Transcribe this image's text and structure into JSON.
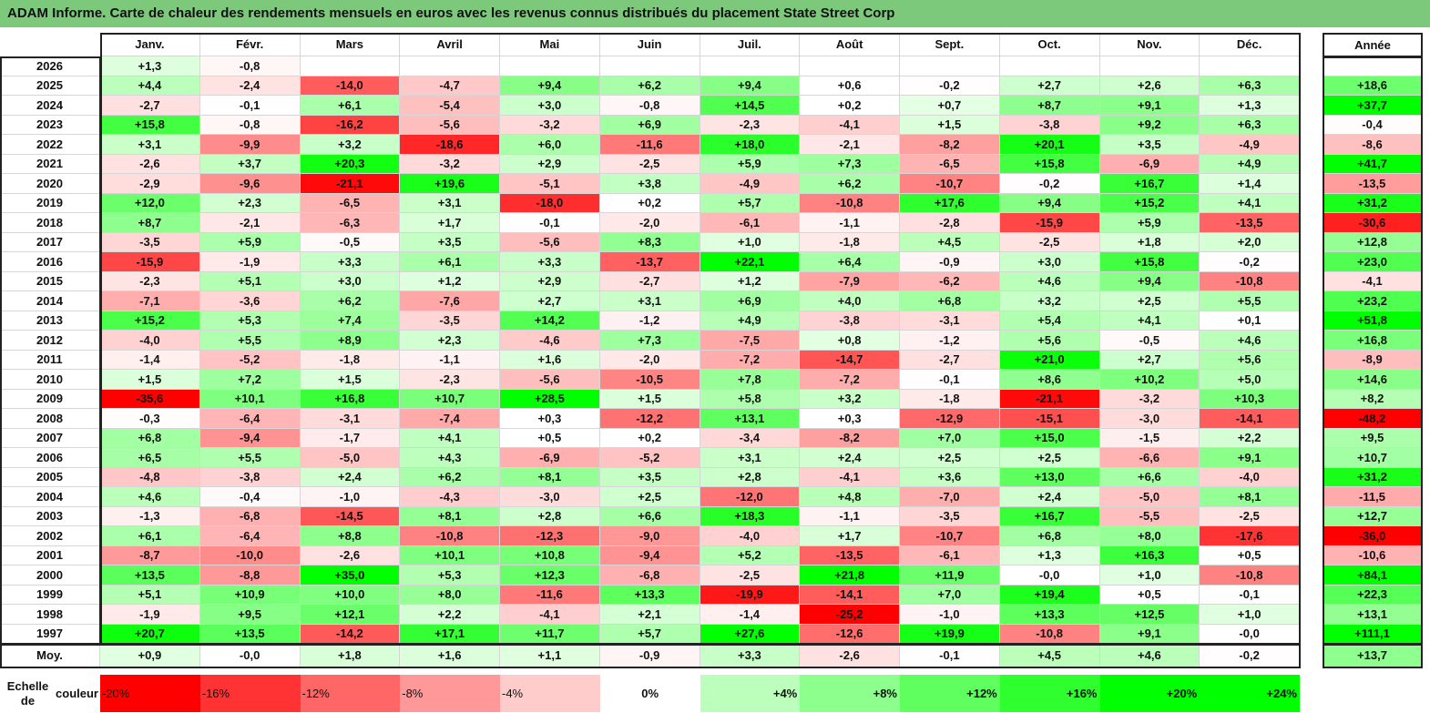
{
  "title": "ADAM Informe. Carte de chaleur des rendements mensuels en euros avec les revenus connus distribués du placement State Street Corp",
  "chart_data": {
    "type": "heatmap",
    "title": "ADAM Informe. Carte de chaleur des rendements mensuels en euros avec les revenus connus distribués du placement State Street Corp",
    "columns": [
      "Janv.",
      "Févr.",
      "Mars",
      "Avril",
      "Mai",
      "Juin",
      "Juil.",
      "Août",
      "Sept.",
      "Oct.",
      "Nov.",
      "Déc."
    ],
    "year_header": "Année",
    "average_label": "Moy.",
    "rows": [
      {
        "year": "2026",
        "values": [
          "+1,3",
          "-0,8",
          "",
          "",
          "",
          "",
          "",
          "",
          "",
          "",
          "",
          ""
        ],
        "annual": ""
      },
      {
        "year": "2025",
        "values": [
          "+4,4",
          "-2,4",
          "-14,0",
          "-4,7",
          "+9,4",
          "+6,2",
          "+9,4",
          "+0,6",
          "-0,2",
          "+2,7",
          "+2,6",
          "+6,3"
        ],
        "annual": "+18,6"
      },
      {
        "year": "2024",
        "values": [
          "-2,7",
          "-0,1",
          "+6,1",
          "-5,4",
          "+3,0",
          "-0,8",
          "+14,5",
          "+0,2",
          "+0,7",
          "+8,7",
          "+9,1",
          "+1,3"
        ],
        "annual": "+37,7"
      },
      {
        "year": "2023",
        "values": [
          "+15,8",
          "-0,8",
          "-16,2",
          "-5,6",
          "-3,2",
          "+6,9",
          "-2,3",
          "-4,1",
          "+1,5",
          "-3,8",
          "+9,2",
          "+6,3"
        ],
        "annual": "-0,4"
      },
      {
        "year": "2022",
        "values": [
          "+3,1",
          "-9,9",
          "+3,2",
          "-18,6",
          "+6,0",
          "-11,6",
          "+18,0",
          "-2,1",
          "-8,2",
          "+20,1",
          "+3,5",
          "-4,9"
        ],
        "annual": "-8,6"
      },
      {
        "year": "2021",
        "values": [
          "-2,6",
          "+3,7",
          "+20,3",
          "-3,2",
          "+2,9",
          "-2,5",
          "+5,9",
          "+7,3",
          "-6,5",
          "+15,8",
          "-6,9",
          "+4,9"
        ],
        "annual": "+41,7"
      },
      {
        "year": "2020",
        "values": [
          "-2,9",
          "-9,6",
          "-21,1",
          "+19,6",
          "-5,1",
          "+3,8",
          "-4,9",
          "+6,2",
          "-10,7",
          "-0,2",
          "+16,7",
          "+1,4"
        ],
        "annual": "-13,5"
      },
      {
        "year": "2019",
        "values": [
          "+12,0",
          "+2,3",
          "-6,5",
          "+3,1",
          "-18,0",
          "+0,2",
          "+5,7",
          "-10,8",
          "+17,6",
          "+9,4",
          "+15,2",
          "+4,1"
        ],
        "annual": "+31,2"
      },
      {
        "year": "2018",
        "values": [
          "+8,7",
          "-2,1",
          "-6,3",
          "+1,7",
          "-0,1",
          "-2,0",
          "-6,1",
          "-1,1",
          "-2,8",
          "-15,9",
          "+5,9",
          "-13,5"
        ],
        "annual": "-30,6"
      },
      {
        "year": "2017",
        "values": [
          "-3,5",
          "+5,9",
          "-0,5",
          "+3,5",
          "-5,6",
          "+8,3",
          "+1,0",
          "-1,8",
          "+4,5",
          "-2,5",
          "+1,8",
          "+2,0"
        ],
        "annual": "+12,8"
      },
      {
        "year": "2016",
        "values": [
          "-15,9",
          "-1,9",
          "+3,3",
          "+6,1",
          "+3,3",
          "-13,7",
          "+22,1",
          "+6,4",
          "-0,9",
          "+3,0",
          "+15,8",
          "-0,2"
        ],
        "annual": "+23,0"
      },
      {
        "year": "2015",
        "values": [
          "-2,3",
          "+5,1",
          "+3,0",
          "+1,2",
          "+2,9",
          "-2,7",
          "+1,2",
          "-7,9",
          "-6,2",
          "+4,6",
          "+9,4",
          "-10,8"
        ],
        "annual": "-4,1"
      },
      {
        "year": "2014",
        "values": [
          "-7,1",
          "-3,6",
          "+6,2",
          "-7,6",
          "+2,7",
          "+3,1",
          "+6,9",
          "+4,0",
          "+6,8",
          "+3,2",
          "+2,5",
          "+5,5"
        ],
        "annual": "+23,2"
      },
      {
        "year": "2013",
        "values": [
          "+15,2",
          "+5,3",
          "+7,4",
          "-3,5",
          "+14,2",
          "-1,2",
          "+4,9",
          "-3,8",
          "-3,1",
          "+5,4",
          "+4,1",
          "+0,1"
        ],
        "annual": "+51,8"
      },
      {
        "year": "2012",
        "values": [
          "-4,0",
          "+5,5",
          "+8,9",
          "+2,3",
          "-4,6",
          "+7,3",
          "-7,5",
          "+0,8",
          "-1,2",
          "+5,6",
          "-0,5",
          "+4,6"
        ],
        "annual": "+16,8"
      },
      {
        "year": "2011",
        "values": [
          "-1,4",
          "-5,2",
          "-1,8",
          "-1,1",
          "+1,6",
          "-2,0",
          "-7,2",
          "-14,7",
          "-2,7",
          "+21,0",
          "+2,7",
          "+5,6"
        ],
        "annual": "-8,9"
      },
      {
        "year": "2010",
        "values": [
          "+1,5",
          "+7,2",
          "+1,5",
          "-2,3",
          "-5,6",
          "-10,5",
          "+7,8",
          "-7,2",
          "-0,1",
          "+8,6",
          "+10,2",
          "+5,0"
        ],
        "annual": "+14,6"
      },
      {
        "year": "2009",
        "values": [
          "-35,6",
          "+10,1",
          "+16,8",
          "+10,7",
          "+28,5",
          "+1,5",
          "+5,8",
          "+3,2",
          "-1,8",
          "-21,1",
          "-3,2",
          "+10,3"
        ],
        "annual": "+8,2"
      },
      {
        "year": "2008",
        "values": [
          "-0,3",
          "-6,4",
          "-3,1",
          "-7,4",
          "+0,3",
          "-12,2",
          "+13,1",
          "+0,3",
          "-12,9",
          "-15,1",
          "-3,0",
          "-14,1"
        ],
        "annual": "-48,2"
      },
      {
        "year": "2007",
        "values": [
          "+6,8",
          "-9,4",
          "-1,7",
          "+4,1",
          "+0,5",
          "+0,2",
          "-3,4",
          "-8,2",
          "+7,0",
          "+15,0",
          "-1,5",
          "+2,2"
        ],
        "annual": "+9,5"
      },
      {
        "year": "2006",
        "values": [
          "+6,5",
          "+5,5",
          "-5,0",
          "+4,3",
          "-6,9",
          "-5,2",
          "+3,1",
          "+2,4",
          "+2,5",
          "+2,5",
          "-6,6",
          "+9,1"
        ],
        "annual": "+10,7"
      },
      {
        "year": "2005",
        "values": [
          "-4,8",
          "-3,8",
          "+2,4",
          "+6,2",
          "+8,1",
          "+3,5",
          "+2,8",
          "-4,1",
          "+3,6",
          "+13,0",
          "+6,6",
          "-4,0"
        ],
        "annual": "+31,2"
      },
      {
        "year": "2004",
        "values": [
          "+4,6",
          "-0,4",
          "-1,0",
          "-4,3",
          "-3,0",
          "+2,5",
          "-12,0",
          "+4,8",
          "-7,0",
          "+2,4",
          "-5,0",
          "+8,1"
        ],
        "annual": "-11,5"
      },
      {
        "year": "2003",
        "values": [
          "-1,3",
          "-6,8",
          "-14,5",
          "+8,1",
          "+2,8",
          "+6,6",
          "+18,3",
          "-1,1",
          "-3,5",
          "+16,7",
          "-5,5",
          "-2,5"
        ],
        "annual": "+12,7"
      },
      {
        "year": "2002",
        "values": [
          "+6,1",
          "-6,4",
          "+8,8",
          "-10,8",
          "-12,3",
          "-9,0",
          "-4,0",
          "+1,7",
          "-10,7",
          "+6,8",
          "+8,0",
          "-17,6"
        ],
        "annual": "-36,0"
      },
      {
        "year": "2001",
        "values": [
          "-8,7",
          "-10,0",
          "-2,6",
          "+10,1",
          "+10,8",
          "-9,4",
          "+5,2",
          "-13,5",
          "-6,1",
          "+1,3",
          "+16,3",
          "+0,5"
        ],
        "annual": "-10,6"
      },
      {
        "year": "2000",
        "values": [
          "+13,5",
          "-8,8",
          "+35,0",
          "+5,3",
          "+12,3",
          "-6,8",
          "-2,5",
          "+21,8",
          "+11,9",
          "-0,0",
          "+1,0",
          "-10,8"
        ],
        "annual": "+84,1"
      },
      {
        "year": "1999",
        "values": [
          "+5,1",
          "+10,9",
          "+10,0",
          "+8,0",
          "-11,6",
          "+13,3",
          "-19,9",
          "-14,1",
          "+7,0",
          "+19,4",
          "+0,5",
          "-0,1"
        ],
        "annual": "+22,3"
      },
      {
        "year": "1998",
        "values": [
          "-1,9",
          "+9,5",
          "+12,1",
          "+2,2",
          "-4,1",
          "+2,1",
          "-1,4",
          "-25,2",
          "-1,0",
          "+13,3",
          "+12,5",
          "+1,0"
        ],
        "annual": "+13,1"
      },
      {
        "year": "1997",
        "values": [
          "+20,7",
          "+13,5",
          "-14,2",
          "+17,1",
          "+11,7",
          "+5,7",
          "+27,6",
          "-12,6",
          "+19,9",
          "-10,8",
          "+9,1",
          "-0,0"
        ],
        "annual": "+111,1"
      }
    ],
    "average": {
      "values": [
        "+0,9",
        "-0,0",
        "+1,8",
        "+1,6",
        "+1,1",
        "-0,9",
        "+3,3",
        "-2,6",
        "-0,1",
        "+4,5",
        "+4,6",
        "-0,2"
      ],
      "annual": "+13,7"
    },
    "legend": {
      "label_line1": "Echelle de",
      "label_line2": "couleur",
      "stops": [
        "-20%",
        "-16%",
        "-12%",
        "-8%",
        "-4%",
        "0%",
        "+4%",
        "+8%",
        "+12%",
        "+16%",
        "+20%",
        "+24%"
      ]
    },
    "colors": {
      "title_bg": "#7cc97c",
      "neg_strong": "#ff0000",
      "pos_strong": "#00ff00",
      "neutral": "#ffffff"
    }
  }
}
